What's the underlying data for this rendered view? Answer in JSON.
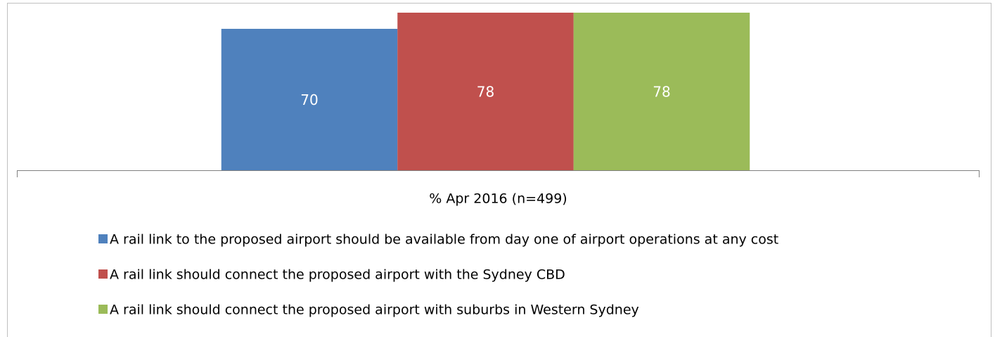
{
  "chart_data": {
    "type": "bar",
    "categories": [
      "% Apr 2016 (n=499)"
    ],
    "series": [
      {
        "name": "A rail link to the proposed airport should be available from day one of airport operations at any cost",
        "color": "#4f81bd",
        "values": [
          70
        ]
      },
      {
        "name": "A rail link should connect the proposed airport with the Sydney CBD",
        "color": "#c0504d",
        "values": [
          78
        ]
      },
      {
        "name": "A rail link should connect the proposed airport with suburbs in Western Sydney",
        "color": "#9bbb59",
        "values": [
          78
        ]
      }
    ],
    "legend": "bottom"
  }
}
